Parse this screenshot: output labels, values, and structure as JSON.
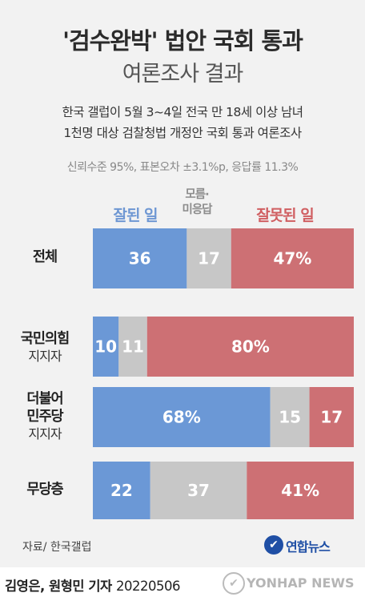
{
  "header": {
    "title": "'검수완박' 법안 국회 통과",
    "subtitle": "여론조사 결과",
    "desc_line1": "한국 갤럽이 5월 3~4일 전국 만 18세 이상 남녀",
    "desc_line2": "1천명 대상 검찰청법 개정안 국회 통과 여론조사",
    "meta": "신뢰수준 95%, 표본오차 ±3.1%p, 응답률 11.3%"
  },
  "chart_data": {
    "type": "bar",
    "stacked": true,
    "orientation": "horizontal",
    "unit": "%",
    "series": [
      {
        "name": "잘된 일",
        "color": "#6b98d6"
      },
      {
        "name": "모름·미응답",
        "color": "#c7c7c7"
      },
      {
        "name": "잘못된 일",
        "color": "#cd7074"
      }
    ],
    "legend_dk_line1": "모름·",
    "legend_dk_line2": "미응답",
    "rows": [
      {
        "label": "전체",
        "sub": "",
        "values": [
          36,
          17,
          47
        ],
        "labels": [
          "36",
          "17",
          "47%"
        ]
      },
      {
        "label": "국민의힘",
        "sub": "지지자",
        "values": [
          10,
          11,
          80
        ],
        "labels": [
          "10",
          "11",
          "80%"
        ]
      },
      {
        "label": "더불어",
        "label2": "민주당",
        "sub": "지지자",
        "values": [
          68,
          15,
          17
        ],
        "labels": [
          "68%",
          "15",
          "17"
        ]
      },
      {
        "label": "무당층",
        "sub": "",
        "values": [
          22,
          37,
          41
        ],
        "labels": [
          "22",
          "37",
          "41%"
        ]
      }
    ]
  },
  "footer": {
    "source": "자료/ 한국갤럽",
    "logo_text": "연합뉴스",
    "byline": "김영은, 원형민 기자",
    "date": "20220506",
    "watermark": "YONHAP NEWS"
  }
}
